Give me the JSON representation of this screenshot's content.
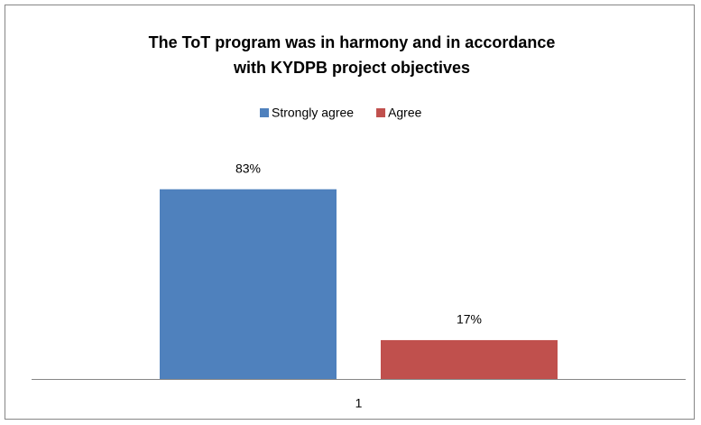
{
  "chart_data": {
    "type": "bar",
    "title": [
      "The ToT program was in harmony and in accordance",
      "with KYDPB project objectives"
    ],
    "categories": [
      "1"
    ],
    "series": [
      {
        "name": "Strongly agree",
        "color": "#4f81bd",
        "values": [
          83
        ],
        "value_labels": [
          "83%"
        ]
      },
      {
        "name": "Agree",
        "color": "#c0504d",
        "values": [
          17
        ],
        "value_labels": [
          "17%"
        ]
      }
    ],
    "ylim": [
      0,
      90
    ],
    "legend": "top"
  }
}
